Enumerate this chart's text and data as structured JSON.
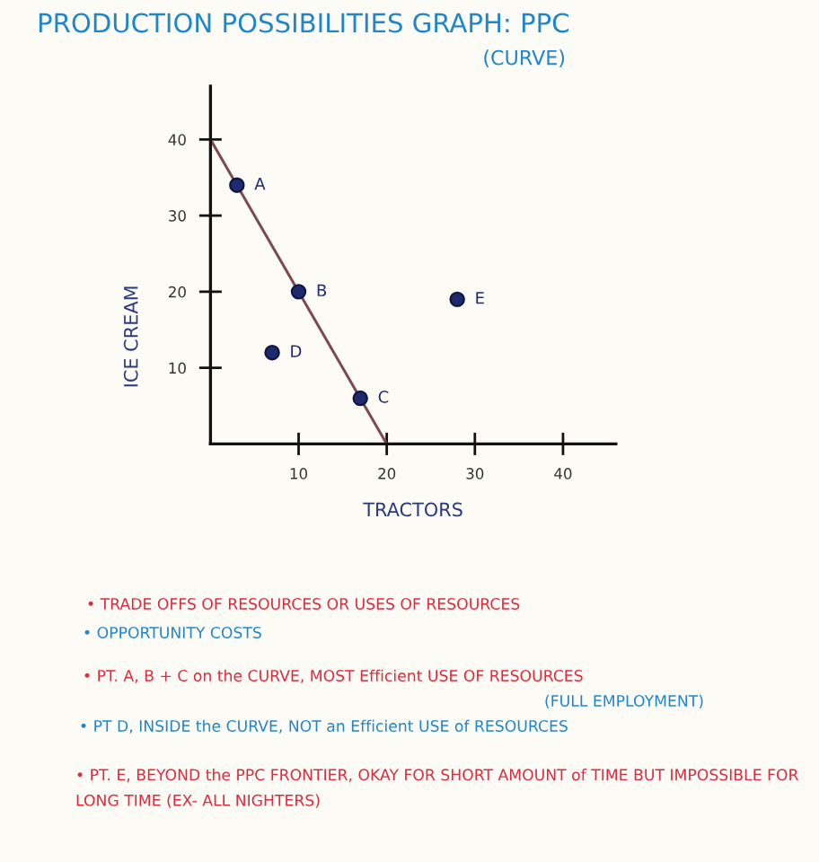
{
  "chart_data": {
    "type": "scatter",
    "title": "PRODUCTION POSSIBILITIES GRAPH: PPC",
    "subtitle": "(CURVE)",
    "xlabel": "TRACTORS",
    "ylabel": "ICE CREAM",
    "series": [
      {
        "type": "line",
        "color": "#7b4b4e",
        "x": [
          0,
          20
        ],
        "values": [
          40,
          0
        ]
      },
      {
        "color": "#1f2a6e",
        "marker": "circle",
        "x": [
          3,
          10,
          17,
          7,
          28
        ],
        "values": [
          34,
          20,
          6,
          12,
          19
        ]
      }
    ],
    "xlim": [
      0,
      46
    ],
    "ylim": [
      0,
      47
    ],
    "xticks": [
      10,
      20,
      30,
      40
    ],
    "yticks": [
      10,
      20,
      30,
      40
    ],
    "annotations": [
      {
        "text": "A",
        "x": 3,
        "y": 34
      },
      {
        "text": "B",
        "x": 10,
        "y": 20
      },
      {
        "text": "C",
        "x": 17,
        "y": 6
      },
      {
        "text": "D",
        "x": 7,
        "y": 12
      },
      {
        "text": "E",
        "x": 28,
        "y": 19
      },
      "• TRADE OFFS OF RESOURCES OR USES OF RESOURCES",
      "• OPPORTUNITY COSTS",
      "• PT. A, B + C on the CURVE, MOST Efficient USE OF RESOURCES",
      "(FULL EMPLOYMENT)",
      "• PT D, INSIDE the CURVE, NOT an Efficient USE of RESOURCES",
      "• PT. E, BEYOND the PPC FRONTIER, OKAY FOR SHORT AMOUNT of TIME BUT IMPOSSIBLE FOR LONG TIME (EX- ALL NIGHTERS)"
    ]
  }
}
